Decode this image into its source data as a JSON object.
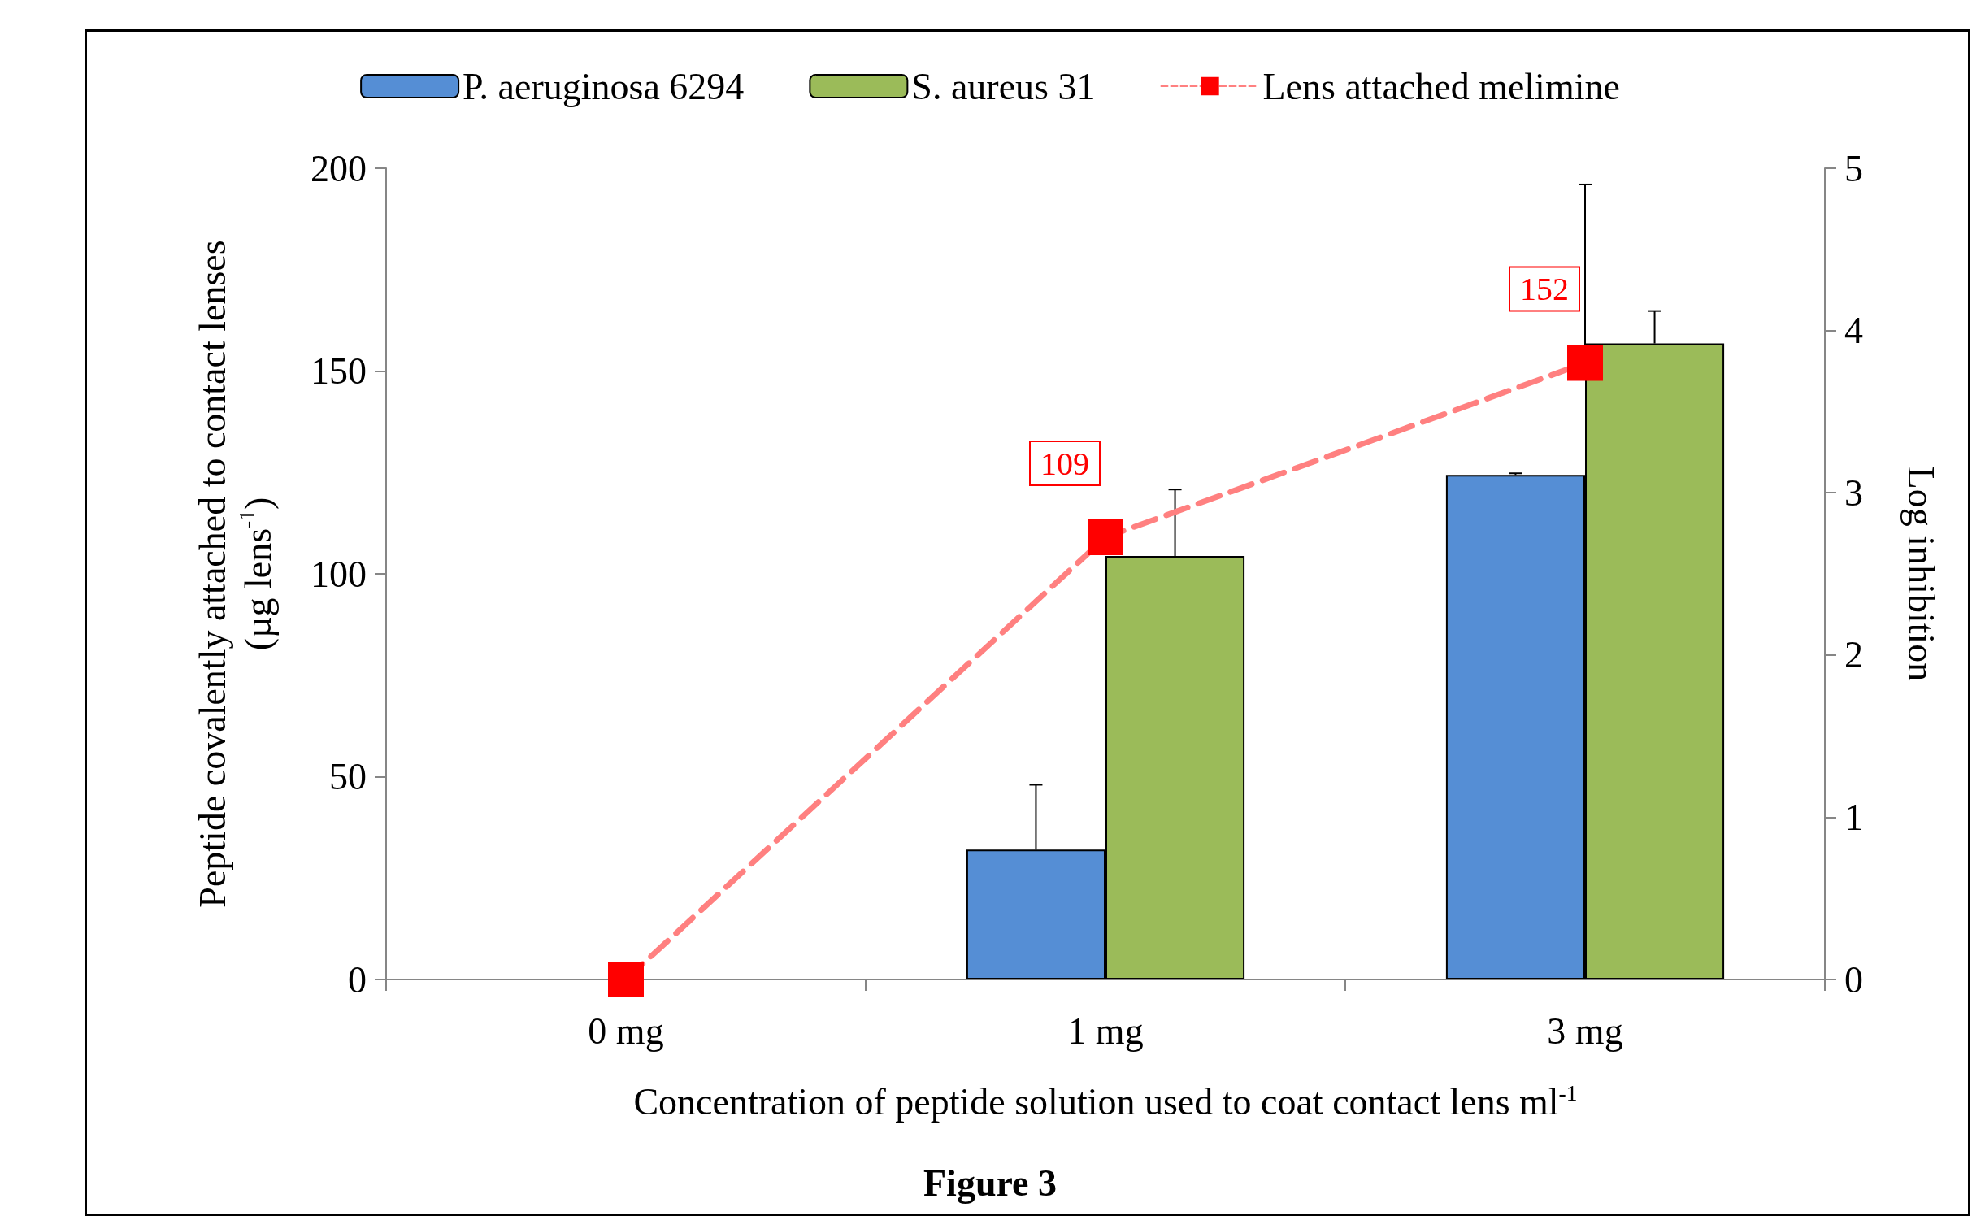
{
  "chart_data": {
    "type": "bar",
    "title": null,
    "categories": [
      "0 mg",
      "1 mg",
      "3 mg"
    ],
    "xlabel": "Concentration of peptide solution used to coat contact lens ml$^{-1}$",
    "ylabel": "Peptide covalently attached to contact lenses\n(µg lens$^{-1}$)",
    "y2label": "Log inhibition",
    "ylim": [
      0,
      200
    ],
    "yticks": [
      0,
      50,
      100,
      150,
      200
    ],
    "y2lim": [
      0,
      5
    ],
    "y2ticks": [
      0,
      1,
      2,
      3,
      4,
      5
    ],
    "series": [
      {
        "name": "P. aeruginosa 6294",
        "axis": "y2",
        "color": "#558ed5",
        "values": [
          0,
          0.8,
          3.11
        ],
        "errors": [
          null,
          [
            0.8,
            1.2
          ],
          [
            3.11,
            3.12
          ]
        ]
      },
      {
        "name": "S. aureus 31",
        "axis": "y2",
        "color": "#9bbb59",
        "values": [
          0,
          2.61,
          3.92
        ],
        "errors": [
          null,
          [
            2.61,
            3.02
          ],
          [
            3.92,
            4.12
          ]
        ]
      },
      {
        "name": "Lens attached melimine",
        "type": "line",
        "color": "#ff8080",
        "colors": [
          "#ff0000",
          "#ff0000",
          "#ff0000"
        ],
        "marker": "square",
        "line_style": "dashed",
        "values": [
          0,
          109,
          152
        ],
        "value_labels": [
          null,
          "109",
          "152"
        ],
        "errors": [
          null,
          null,
          [
            152,
            196
          ]
        ]
      }
    ],
    "legend": "top",
    "grid": false,
    "annotations": [
      "Figure 3"
    ]
  }
}
